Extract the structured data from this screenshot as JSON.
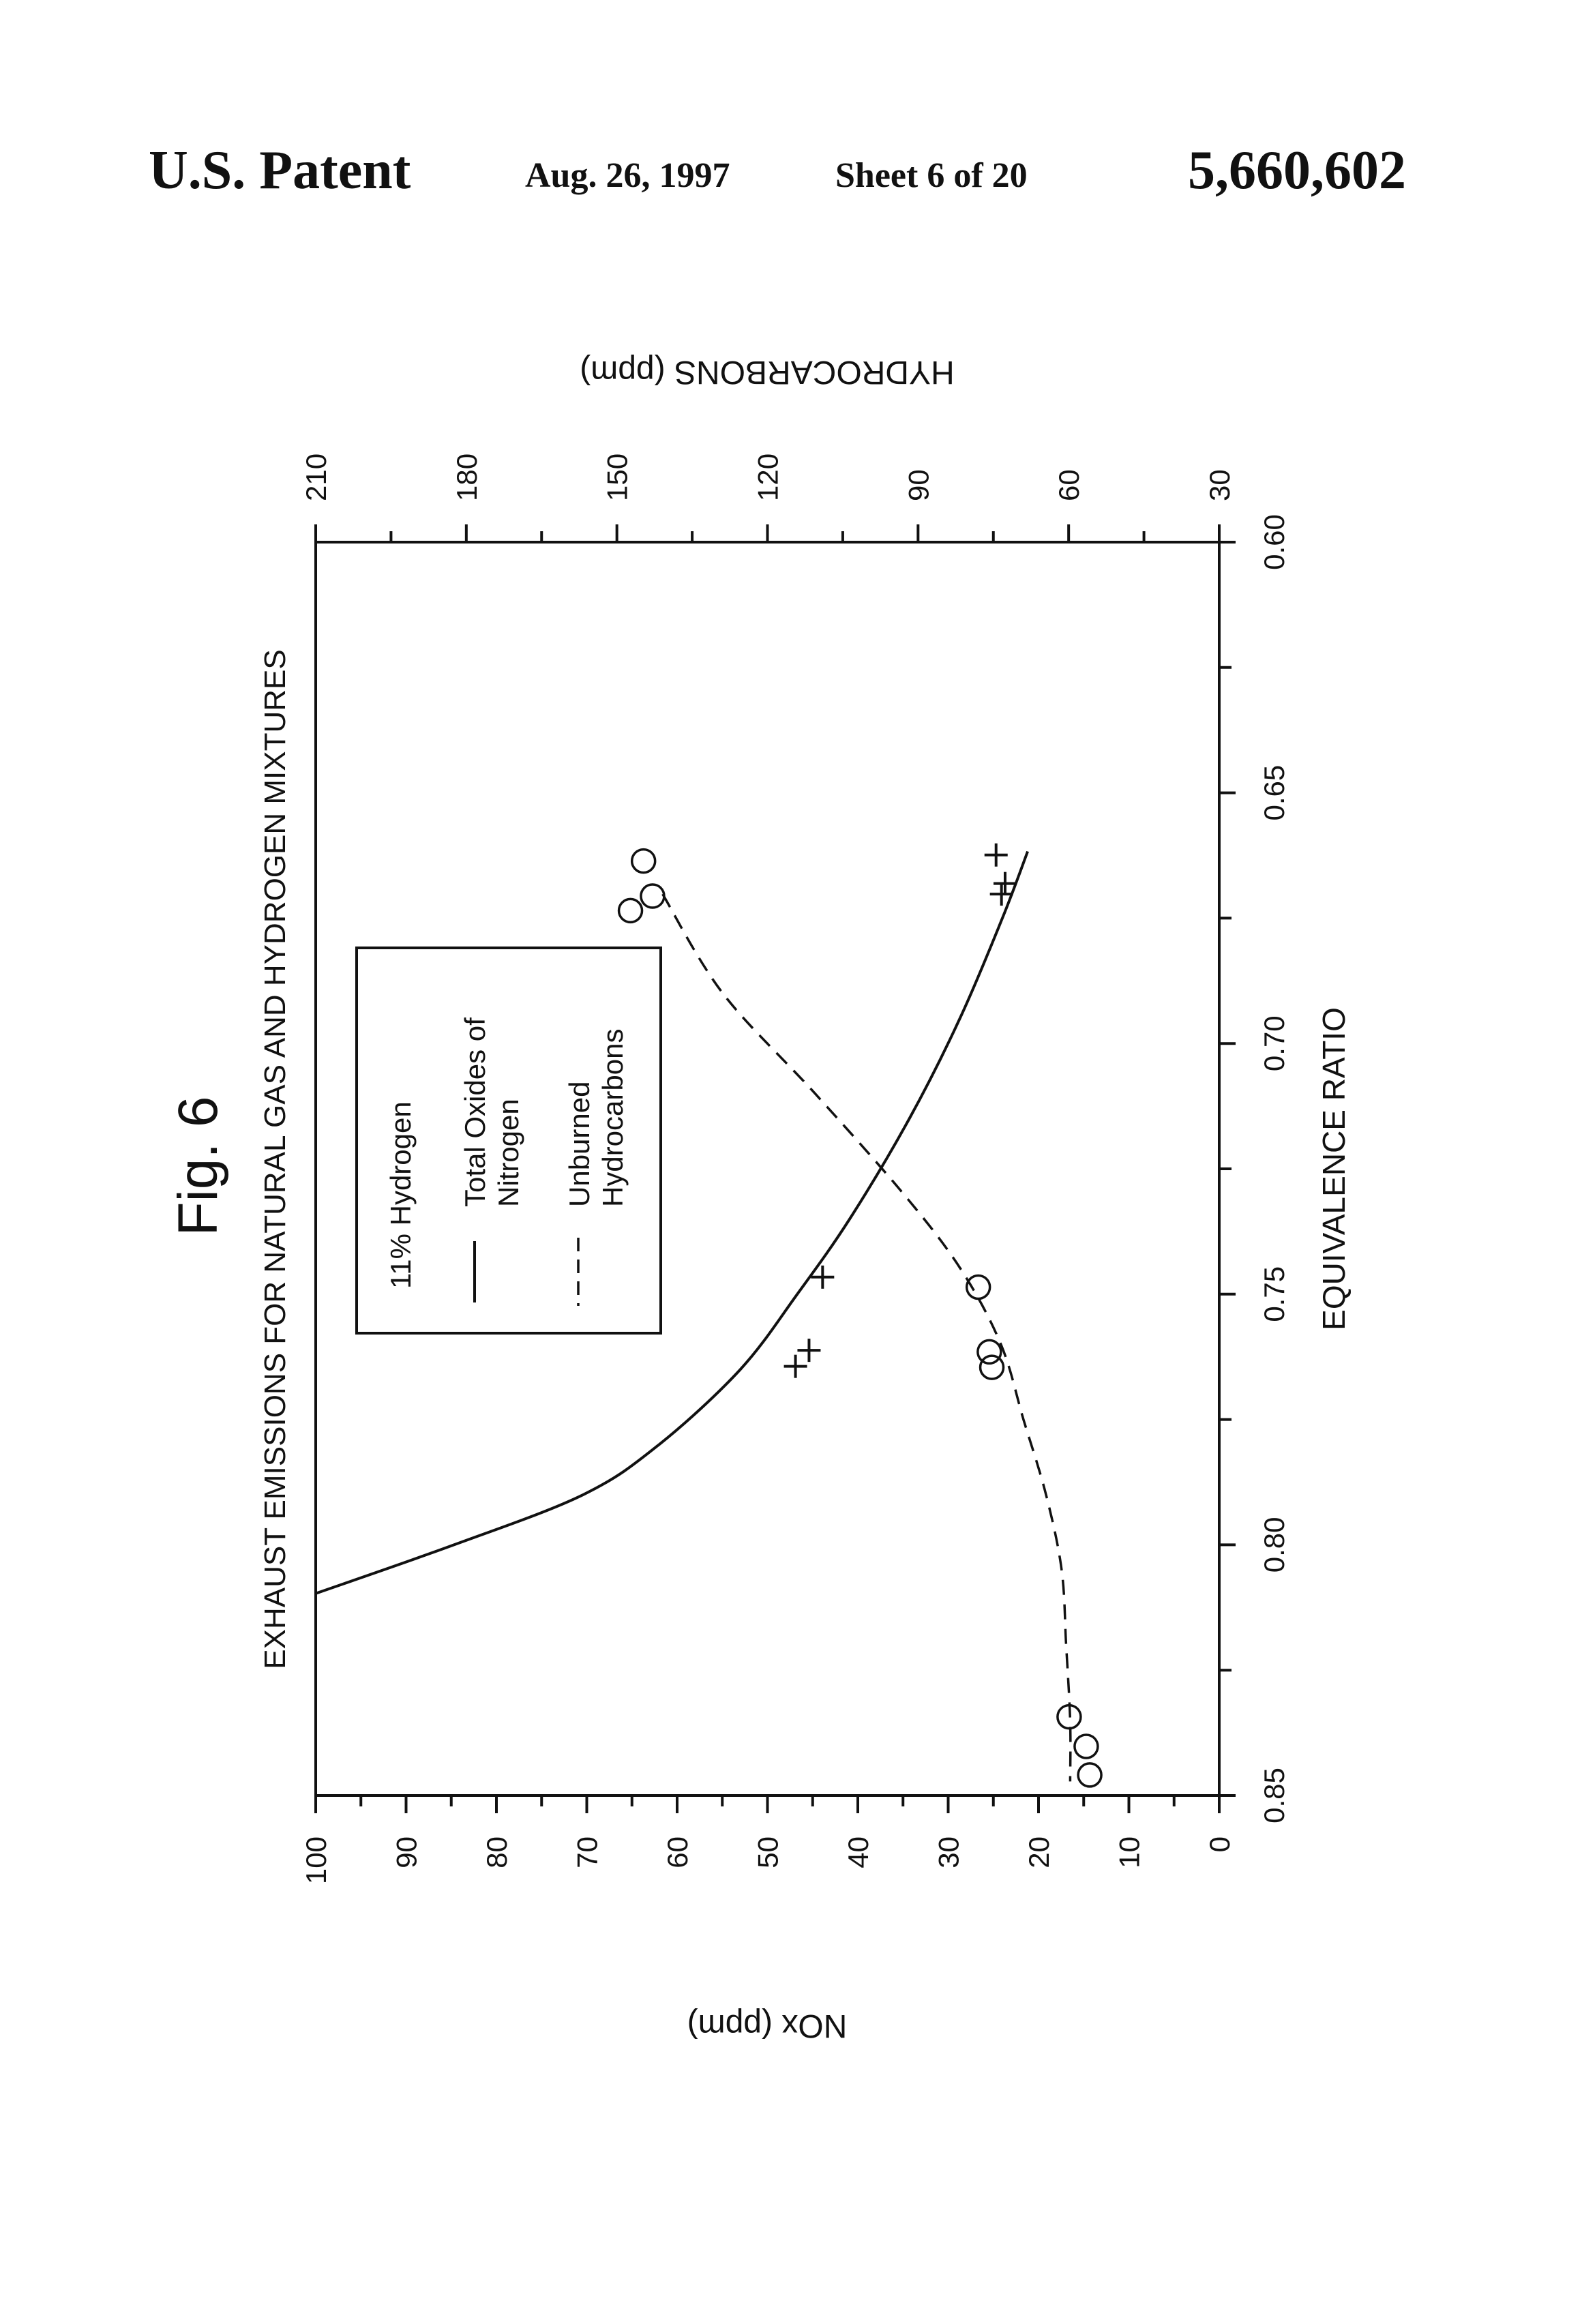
{
  "header": {
    "left": "U.S. Patent",
    "date": "Aug. 26, 1997",
    "sheet": "Sheet 6 of 20",
    "number": "5,660,602"
  },
  "chart_data": {
    "type": "scatter",
    "figure_label": "Fig. 6",
    "title": "EXHAUST EMISSIONS FOR NATURAL GAS AND HYDROGEN MIXTURES",
    "xlabel": "EQUIVALENCE RATIO",
    "ylabel_left": "NOx (ppm)",
    "ylabel_right": "HYDROCARBONS (ppm)",
    "xlim": [
      0.6,
      0.85
    ],
    "ylim_left": [
      0,
      100
    ],
    "ylim_right": [
      30,
      210
    ],
    "x_ticks": [
      "0.60",
      "0.65",
      "0.70",
      "0.75",
      "0.80",
      "0.85"
    ],
    "y_left_ticks": [
      "0",
      "10",
      "20",
      "30",
      "40",
      "50",
      "60",
      "70",
      "80",
      "90",
      "100"
    ],
    "y_right_ticks": [
      "30",
      "60",
      "90",
      "120",
      "150",
      "180",
      "210"
    ],
    "legend": {
      "title": "11% Hydrogen",
      "items": [
        {
          "style": "solid",
          "label_line1": "Total Oxides of",
          "label_line2": "Nitrogen"
        },
        {
          "style": "dashed",
          "label_line1": "Unburned",
          "label_line2": "Hydrocarbons"
        }
      ]
    },
    "series": [
      {
        "name": "Total Oxides of Nitrogen",
        "axis": "left",
        "style": "solid",
        "x": [
          0.6617,
          0.675,
          0.695,
          0.715,
          0.735,
          0.75,
          0.765,
          0.78,
          0.79,
          0.8,
          0.8097
        ],
        "y": [
          21.2,
          24.0,
          28.7,
          34.3,
          40.9,
          46.7,
          53.0,
          62.0,
          70.4,
          84.7,
          100.0
        ]
      },
      {
        "name": "Unburned Hydrocarbons",
        "axis": "right",
        "style": "dashed",
        "x": [
          0.6702,
          0.69,
          0.71,
          0.73,
          0.745,
          0.76,
          0.775,
          0.79,
          0.805,
          0.82,
          0.835,
          0.8472
        ],
        "y": [
          140.9,
          128.9,
          110.5,
          92.9,
          81.5,
          73.5,
          69.0,
          64.5,
          61.4,
          60.5,
          59.7,
          59.7
        ]
      },
      {
        "name": "NOx measured",
        "axis": "left",
        "marker": "+",
        "x": [
          0.6624,
          0.6681,
          0.6702,
          0.7466,
          0.7612,
          0.7644
        ],
        "y": [
          24.7,
          23.7,
          24.1,
          43.9,
          45.4,
          46.9
        ]
      },
      {
        "name": "Hydrocarbons measured",
        "axis": "right",
        "marker": "o",
        "x": [
          0.6636,
          0.6706,
          0.6735,
          0.7486,
          0.7615,
          0.7646,
          0.8343,
          0.8402,
          0.8459
        ],
        "y": [
          144.7,
          142.9,
          147.3,
          78.0,
          75.8,
          75.3,
          59.9,
          56.5,
          55.8
        ]
      }
    ]
  }
}
